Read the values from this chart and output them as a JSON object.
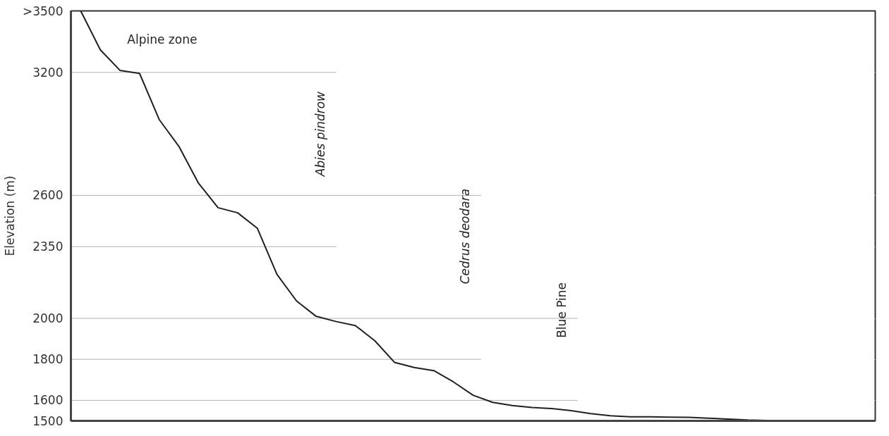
{
  "chart_data": {
    "type": "line",
    "ylabel": "Elevation (m)",
    "categories": [
      null,
      null,
      null,
      null,
      null,
      null,
      null,
      null,
      null,
      null,
      null,
      null,
      null,
      null,
      null,
      null,
      null,
      null,
      null,
      null,
      null,
      null,
      null,
      null,
      null,
      null,
      null,
      null,
      null,
      null,
      null,
      null,
      null,
      null,
      null,
      null,
      null,
      null,
      null,
      null,
      null
    ],
    "series": [
      {
        "color": "#231f20",
        "values": [
          3500,
          3310,
          3210,
          3195,
          2970,
          2840,
          2660,
          2540,
          2515,
          2440,
          2215,
          2085,
          2010,
          1985,
          1965,
          1890,
          1785,
          1760,
          1745,
          1690,
          1625,
          1590,
          1575,
          1565,
          1560,
          1550,
          1535,
          1525,
          1520,
          1520,
          1518,
          1517,
          1513,
          1509,
          1504,
          1502,
          1502,
          1502,
          1502,
          1502,
          1502
        ]
      }
    ],
    "ylim": [
      1500,
      3500
    ],
    "yticks": [
      1500,
      1600,
      1800,
      2000,
      2350,
      2600,
      3200,
      {
        "value": 3500,
        "label": ">3500"
      }
    ],
    "tick_labels": "y",
    "grid": "y",
    "marker": "none",
    "line_style": "solid",
    "ref_lines": [
      {
        "axis": "y",
        "value": 3200,
        "color": "#b3b3b3"
      },
      {
        "axis": "y",
        "value": 2600,
        "color": "#b3b3b3"
      },
      {
        "axis": "y",
        "value": 2350,
        "color": "#b3b3b3"
      },
      {
        "axis": "y",
        "value": 2000,
        "color": "#b3b3b3"
      },
      {
        "axis": "y",
        "value": 1800,
        "color": "#b3b3b3"
      },
      {
        "axis": "y",
        "value": 1600,
        "color": "#b3b3b3"
      }
    ],
    "annotations": [
      "Alpine zone",
      "Abies pindrow",
      "Cedrus deodara",
      "Blue Pine"
    ]
  }
}
